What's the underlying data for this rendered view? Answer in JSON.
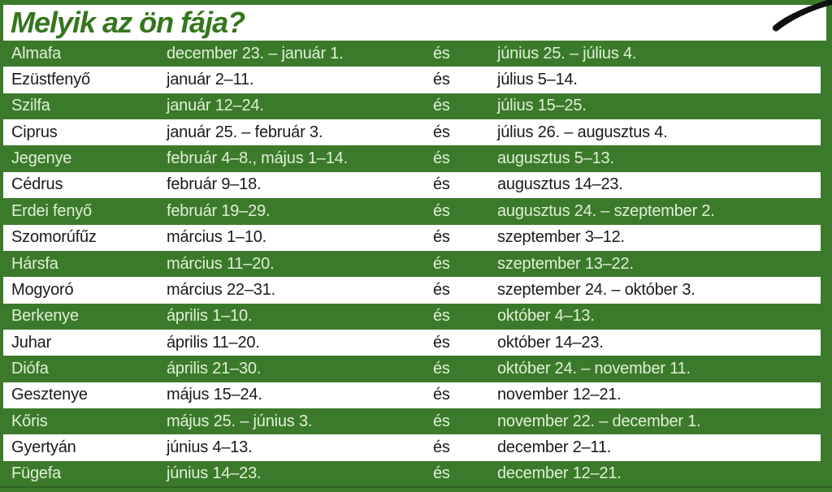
{
  "header": {
    "title": "Melyik az ön fája?"
  },
  "colors": {
    "green": "#3c7a2b",
    "title_green": "#35761d",
    "light_row_text": "#dff0d5",
    "dark_row_text": "#1b1b1b",
    "swoosh_black": "#101010",
    "white": "#ffffff"
  },
  "table": {
    "rows": [
      {
        "tree": "Almafa",
        "first_period": "december 23. – január 1.",
        "conjunction": "és",
        "second_period": "június 25. – július 4."
      },
      {
        "tree": "Ezüstfenyő",
        "first_period": "január 2–11.",
        "conjunction": "és",
        "second_period": "július 5–14."
      },
      {
        "tree": "Szilfa",
        "first_period": "január 12–24.",
        "conjunction": "és",
        "second_period": "július 15–25."
      },
      {
        "tree": "Ciprus",
        "first_period": "január 25. – február 3.",
        "conjunction": "és",
        "second_period": "július 26. – augusztus 4."
      },
      {
        "tree": "Jegenye",
        "first_period": "február 4–8., május 1–14.",
        "conjunction": "és",
        "second_period": "augusztus 5–13."
      },
      {
        "tree": "Cédrus",
        "first_period": "február 9–18.",
        "conjunction": "és",
        "second_period": "augusztus 14–23."
      },
      {
        "tree": "Erdei fenyő",
        "first_period": "február 19–29.",
        "conjunction": "és",
        "second_period": "augusztus 24. – szeptember 2."
      },
      {
        "tree": "Szomorúfűz",
        "first_period": "március 1–10.",
        "conjunction": "és",
        "second_period": "szeptember 3–12."
      },
      {
        "tree": "Hársfa",
        "first_period": "március 11–20.",
        "conjunction": "és",
        "second_period": "szeptember 13–22."
      },
      {
        "tree": "Mogyoró",
        "first_period": "március 22–31.",
        "conjunction": "és",
        "second_period": "szeptember 24. – október 3."
      },
      {
        "tree": "Berkenye",
        "first_period": "április 1–10.",
        "conjunction": "és",
        "second_period": "október 4–13."
      },
      {
        "tree": "Juhar",
        "first_period": "április 11–20.",
        "conjunction": "és",
        "second_period": "október 14–23."
      },
      {
        "tree": "Diófa",
        "first_period": "április 21–30.",
        "conjunction": "és",
        "second_period": "október 24. – november 11."
      },
      {
        "tree": "Gesztenye",
        "first_period": "május 15–24.",
        "conjunction": "és",
        "second_period": "november 12–21."
      },
      {
        "tree": "Kőris",
        "first_period": "május 25. – június 3.",
        "conjunction": "és",
        "second_period": "november 22. – december 1."
      },
      {
        "tree": "Gyertyán",
        "first_period": "június 4–13.",
        "conjunction": "és",
        "second_period": "december 2–11."
      },
      {
        "tree": "Fügefa",
        "first_period": "június 14–23.",
        "conjunction": "és",
        "second_period": "december 12–21."
      }
    ]
  }
}
